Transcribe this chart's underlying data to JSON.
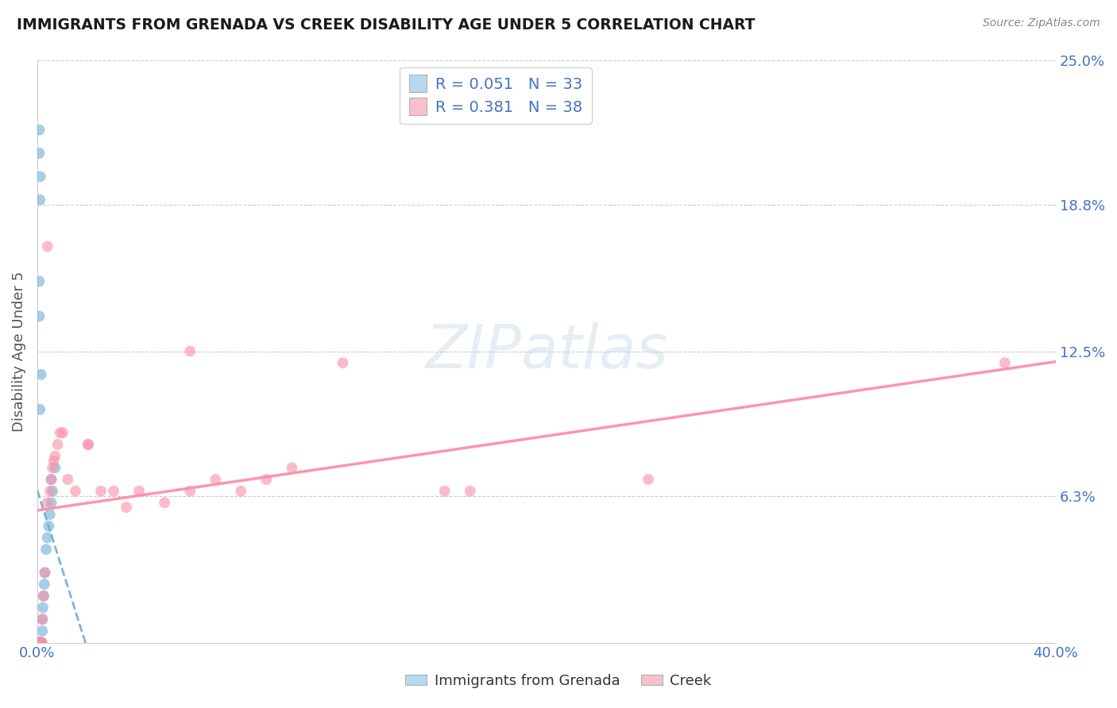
{
  "title": "IMMIGRANTS FROM GRENADA VS CREEK DISABILITY AGE UNDER 5 CORRELATION CHART",
  "source_text": "Source: ZipAtlas.com",
  "ylabel": "Disability Age Under 5",
  "xlim": [
    0.0,
    0.4
  ],
  "ylim": [
    0.0,
    0.25
  ],
  "xtick_labels": [
    "0.0%",
    "40.0%"
  ],
  "ytick_labels_right": [
    "25.0%",
    "18.8%",
    "12.5%",
    "6.3%"
  ],
  "ytick_vals_right": [
    0.25,
    0.188,
    0.125,
    0.063
  ],
  "blue_R": "0.051",
  "blue_N": "33",
  "pink_R": "0.381",
  "pink_N": "38",
  "blue_color": "#6baed6",
  "pink_color": "#fc8fa8",
  "blue_scatter": [
    [
      0.0008,
      0.0
    ],
    [
      0.0008,
      0.0
    ],
    [
      0.0008,
      0.0
    ],
    [
      0.001,
      0.0
    ],
    [
      0.001,
      0.0
    ],
    [
      0.001,
      0.0
    ],
    [
      0.0012,
      0.0
    ],
    [
      0.0012,
      0.0
    ],
    [
      0.0015,
      0.0
    ],
    [
      0.0015,
      0.0
    ],
    [
      0.0018,
      0.0
    ],
    [
      0.002,
      0.005
    ],
    [
      0.002,
      0.01
    ],
    [
      0.0022,
      0.015
    ],
    [
      0.0025,
      0.02
    ],
    [
      0.0028,
      0.025
    ],
    [
      0.003,
      0.03
    ],
    [
      0.0035,
      0.04
    ],
    [
      0.004,
      0.045
    ],
    [
      0.0045,
      0.05
    ],
    [
      0.005,
      0.055
    ],
    [
      0.0055,
      0.06
    ],
    [
      0.006,
      0.065
    ],
    [
      0.0055,
      0.07
    ],
    [
      0.007,
      0.075
    ],
    [
      0.001,
      0.1
    ],
    [
      0.0015,
      0.115
    ],
    [
      0.0008,
      0.14
    ],
    [
      0.0008,
      0.155
    ],
    [
      0.001,
      0.19
    ],
    [
      0.0012,
      0.2
    ],
    [
      0.0008,
      0.21
    ],
    [
      0.0008,
      0.22
    ]
  ],
  "pink_scatter": [
    [
      0.0008,
      0.0
    ],
    [
      0.001,
      0.0
    ],
    [
      0.0012,
      0.0
    ],
    [
      0.0015,
      0.0
    ],
    [
      0.0018,
      0.0
    ],
    [
      0.002,
      0.01
    ],
    [
      0.0025,
      0.02
    ],
    [
      0.003,
      0.03
    ],
    [
      0.004,
      0.06
    ],
    [
      0.005,
      0.065
    ],
    [
      0.0055,
      0.07
    ],
    [
      0.006,
      0.075
    ],
    [
      0.0065,
      0.078
    ],
    [
      0.007,
      0.08
    ],
    [
      0.008,
      0.085
    ],
    [
      0.009,
      0.09
    ],
    [
      0.01,
      0.09
    ],
    [
      0.012,
      0.07
    ],
    [
      0.015,
      0.065
    ],
    [
      0.02,
      0.085
    ],
    [
      0.02,
      0.085
    ],
    [
      0.025,
      0.065
    ],
    [
      0.03,
      0.065
    ],
    [
      0.035,
      0.058
    ],
    [
      0.04,
      0.065
    ],
    [
      0.05,
      0.06
    ],
    [
      0.06,
      0.065
    ],
    [
      0.07,
      0.07
    ],
    [
      0.08,
      0.065
    ],
    [
      0.09,
      0.07
    ],
    [
      0.1,
      0.075
    ],
    [
      0.004,
      0.17
    ],
    [
      0.06,
      0.125
    ],
    [
      0.12,
      0.12
    ],
    [
      0.16,
      0.065
    ],
    [
      0.17,
      0.065
    ],
    [
      0.24,
      0.07
    ],
    [
      0.38,
      0.12
    ]
  ],
  "watermark": "ZIPatlas",
  "background_color": "#ffffff",
  "grid_color": "#cccccc"
}
